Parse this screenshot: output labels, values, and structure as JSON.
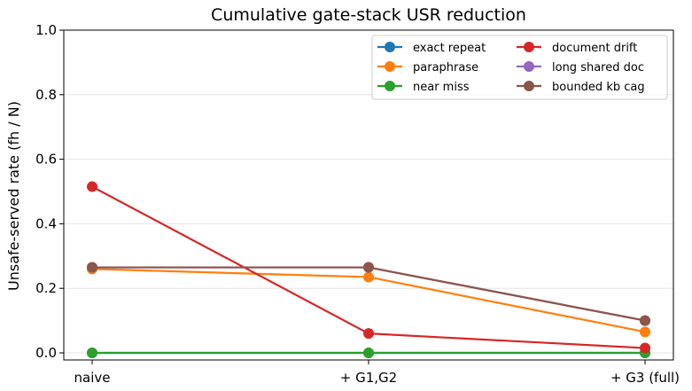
{
  "chart_data": {
    "type": "line",
    "title": "Cumulative gate-stack USR reduction",
    "xlabel": "",
    "ylabel": "Unsafe-served rate (fh / N)",
    "categories": [
      "naive",
      "+ G1,G2",
      "+ G3 (full)"
    ],
    "ylim": [
      0.0,
      1.0
    ],
    "yticks": [
      "0.0",
      "0.2",
      "0.4",
      "0.6",
      "0.8",
      "1.0"
    ],
    "grid": "horizontal",
    "legend_position": "top-right",
    "series": [
      {
        "name": "exact repeat",
        "color": "#1f77b4",
        "values": [
          0.0,
          0.0,
          0.0
        ]
      },
      {
        "name": "paraphrase",
        "color": "#ff7f0e",
        "values": [
          0.26,
          0.235,
          0.065
        ]
      },
      {
        "name": "near miss",
        "color": "#2ca02c",
        "values": [
          0.0,
          0.0,
          0.0
        ]
      },
      {
        "name": "document drift",
        "color": "#d62728",
        "values": [
          0.515,
          0.06,
          0.015
        ]
      },
      {
        "name": "long shared doc",
        "color": "#9467bd",
        "values": [
          0.265,
          0.265,
          0.1
        ]
      },
      {
        "name": "bounded kb cag",
        "color": "#8c564b",
        "values": [
          0.265,
          0.265,
          0.1
        ]
      }
    ]
  }
}
